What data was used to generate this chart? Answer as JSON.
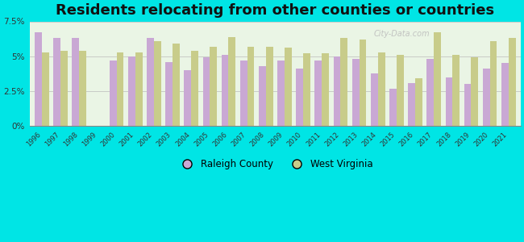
{
  "title": "Residents relocating from other counties or countries",
  "years": [
    1996,
    1997,
    1998,
    1999,
    2000,
    2001,
    2002,
    2003,
    2004,
    2005,
    2006,
    2007,
    2008,
    2009,
    2010,
    2011,
    2012,
    2013,
    2014,
    2015,
    2016,
    2017,
    2018,
    2019,
    2020,
    2021
  ],
  "raleigh_county": [
    6.7,
    6.3,
    6.3,
    null,
    4.7,
    5.0,
    6.3,
    4.6,
    4.0,
    4.9,
    5.1,
    4.7,
    4.3,
    4.7,
    4.1,
    4.7,
    5.0,
    4.8,
    3.8,
    2.7,
    3.1,
    4.8,
    3.5,
    3.0,
    4.1,
    4.5
  ],
  "west_virginia": [
    5.3,
    5.4,
    5.4,
    null,
    5.3,
    5.3,
    6.1,
    5.9,
    5.4,
    5.7,
    6.4,
    5.7,
    5.7,
    5.6,
    5.2,
    5.2,
    6.3,
    6.2,
    5.3,
    5.1,
    3.4,
    6.7,
    5.1,
    4.9,
    6.1,
    6.3
  ],
  "raleigh_color": "#c9a8d4",
  "wv_color": "#c8cc8a",
  "background_color": "#00e5e5",
  "plot_bg_color": "#dff0d8",
  "ylim": [
    0,
    7.5
  ],
  "yticks": [
    0,
    2.5,
    5.0,
    7.5
  ],
  "ytick_labels": [
    "0%",
    "2.5%",
    "5%",
    "7.5%"
  ],
  "title_fontsize": 13,
  "bar_width": 0.38
}
